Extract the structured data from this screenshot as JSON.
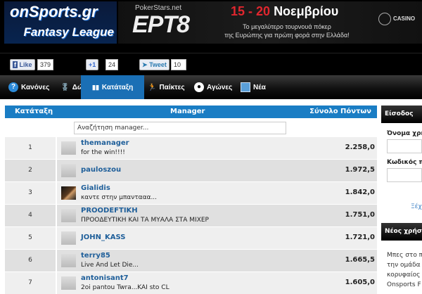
{
  "header": {
    "logo_line1": "onSports.gr",
    "logo_line2": "Fantasy League",
    "banner": {
      "brand": "PokerStars.net",
      "event": "EPT8",
      "dates_red": "15 - 20",
      "dates_white": "Νοεμβρίου",
      "subtitle_line1": "Το μεγαλύτερο τουρνουά πόκερ",
      "subtitle_line2": "της Ευρώπης για πρώτη φορά στην Ελλάδα!",
      "sponsor": "CASINO"
    }
  },
  "social": {
    "like_label": "Like",
    "like_count": "379",
    "plus_label": "+1",
    "plus_count": "24",
    "tweet_label": "Tweet",
    "tweet_count": "10"
  },
  "nav": [
    {
      "label": "Κανόνες",
      "icon": "question-icon"
    },
    {
      "label": "Δώρα",
      "icon": "medal-icon"
    },
    {
      "label": "Κατάταξη",
      "icon": "bars-icon",
      "active": true
    },
    {
      "label": "Παίκτες",
      "icon": "player-icon"
    },
    {
      "label": "Αγώνες",
      "icon": "ball-icon"
    },
    {
      "label": "Νέα",
      "icon": "news-icon"
    }
  ],
  "table": {
    "headers": [
      "Κατάταξη",
      "Manager",
      "Σύνολο Πόντων"
    ],
    "search_placeholder": "Αναζήτηση manager...",
    "rows": [
      {
        "rank": "1",
        "name": "themanager",
        "motto": "for the win!!!!",
        "points": "2.258,0"
      },
      {
        "rank": "2",
        "name": "pauloszou",
        "motto": "",
        "points": "1.972,5"
      },
      {
        "rank": "3",
        "name": "Gialidis",
        "motto": "καντε στην μπαντααα...",
        "points": "1.842,0"
      },
      {
        "rank": "4",
        "name": "PROODEFTIKH",
        "motto": "ΠΡΟΟΔΕΥΤΙΚΗ ΚΑΙ ΤΑ ΜΥΑΛΑ ΣΤΑ ΜΙΧΕΡ",
        "points": "1.751,0"
      },
      {
        "rank": "5",
        "name": "JOHN_KASS",
        "motto": "",
        "points": "1.721,0"
      },
      {
        "rank": "6",
        "name": "terry85",
        "motto": "Live And Let Die...",
        "points": "1.665,5"
      },
      {
        "rank": "7",
        "name": "antonisant7",
        "motto": "2oi pantou Twra...KAI sto CL",
        "points": "1.605,0"
      }
    ]
  },
  "sidebar": {
    "login_title": "Είσοδος",
    "username_label": "Όνομα χρήστη",
    "password_label": "Κωδικός πρόσβασης",
    "forgot_link": "Ξέχασα",
    "new_user_title": "Νέος χρήστης",
    "new_user_lines": [
      "Μπες στο παιχνίδι",
      "την ομάδα",
      "κορυφαίος",
      "Onsports F"
    ]
  }
}
